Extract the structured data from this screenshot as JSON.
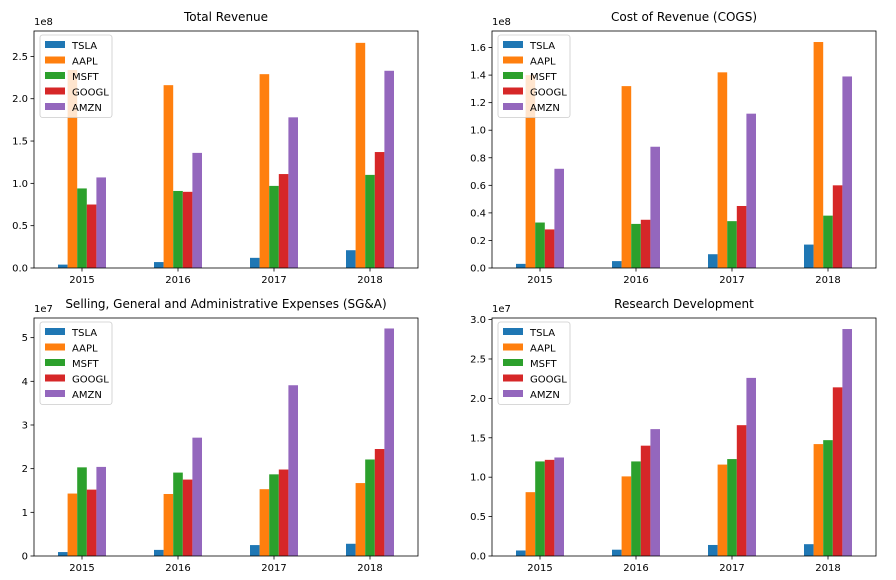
{
  "colors": {
    "TSLA": "#1f77b4",
    "AAPL": "#ff7f0e",
    "MSFT": "#2ca02c",
    "GOOGL": "#d62728",
    "AMZN": "#9467bd"
  },
  "chart_data": [
    {
      "type": "bar",
      "title": "Total Revenue",
      "offset_label": "1e8",
      "categories": [
        "2015",
        "2016",
        "2017",
        "2018"
      ],
      "ylim": [
        0,
        2.8
      ],
      "yticks": [
        0.0,
        0.5,
        1.0,
        1.5,
        2.0,
        2.5
      ],
      "ytick_labels": [
        "0.0",
        "0.5",
        "1.0",
        "1.5",
        "2.0",
        "2.5"
      ],
      "legend": [
        "TSLA",
        "AAPL",
        "MSFT",
        "GOOGL",
        "AMZN"
      ],
      "legend_loc": "upper-left",
      "series": [
        {
          "name": "TSLA",
          "values": [
            0.04,
            0.07,
            0.12,
            0.21
          ]
        },
        {
          "name": "AAPL",
          "values": [
            2.34,
            2.16,
            2.29,
            2.66
          ]
        },
        {
          "name": "MSFT",
          "values": [
            0.94,
            0.91,
            0.97,
            1.1
          ]
        },
        {
          "name": "GOOGL",
          "values": [
            0.75,
            0.9,
            1.11,
            1.37
          ]
        },
        {
          "name": "AMZN",
          "values": [
            1.07,
            1.36,
            1.78,
            2.33
          ]
        }
      ]
    },
    {
      "type": "bar",
      "title": "Cost of Revenue (COGS)",
      "offset_label": "1e8",
      "categories": [
        "2015",
        "2016",
        "2017",
        "2018"
      ],
      "ylim": [
        0,
        1.72
      ],
      "yticks": [
        0.0,
        0.2,
        0.4,
        0.6,
        0.8,
        1.0,
        1.2,
        1.4,
        1.6
      ],
      "ytick_labels": [
        "0.0",
        "0.2",
        "0.4",
        "0.6",
        "0.8",
        "1.0",
        "1.2",
        "1.4",
        "1.6"
      ],
      "legend": [
        "TSLA",
        "AAPL",
        "MSFT",
        "GOOGL",
        "AMZN"
      ],
      "legend_loc": "upper-left",
      "series": [
        {
          "name": "TSLA",
          "values": [
            0.03,
            0.05,
            0.1,
            0.17
          ]
        },
        {
          "name": "AAPL",
          "values": [
            1.4,
            1.32,
            1.42,
            1.64
          ]
        },
        {
          "name": "MSFT",
          "values": [
            0.33,
            0.32,
            0.34,
            0.38
          ]
        },
        {
          "name": "GOOGL",
          "values": [
            0.28,
            0.35,
            0.45,
            0.6
          ]
        },
        {
          "name": "AMZN",
          "values": [
            0.72,
            0.88,
            1.12,
            1.39
          ]
        }
      ]
    },
    {
      "type": "bar",
      "title": "Selling, General and Administrative Expenses (SG&A)",
      "offset_label": "1e7",
      "categories": [
        "2015",
        "2016",
        "2017",
        "2018"
      ],
      "ylim": [
        0,
        5.45
      ],
      "yticks": [
        0,
        1,
        2,
        3,
        4,
        5
      ],
      "ytick_labels": [
        "0",
        "1",
        "2",
        "3",
        "4",
        "5"
      ],
      "legend": [
        "TSLA",
        "AAPL",
        "MSFT",
        "GOOGL",
        "AMZN"
      ],
      "legend_loc": "upper-left",
      "series": [
        {
          "name": "TSLA",
          "values": [
            0.09,
            0.14,
            0.25,
            0.28
          ]
        },
        {
          "name": "AAPL",
          "values": [
            1.43,
            1.42,
            1.53,
            1.67
          ]
        },
        {
          "name": "MSFT",
          "values": [
            2.03,
            1.91,
            1.87,
            2.21
          ]
        },
        {
          "name": "GOOGL",
          "values": [
            1.52,
            1.75,
            1.98,
            2.45
          ]
        },
        {
          "name": "AMZN",
          "values": [
            2.04,
            2.71,
            3.91,
            5.21
          ]
        }
      ]
    },
    {
      "type": "bar",
      "title": "Research Development",
      "offset_label": "1e7",
      "categories": [
        "2015",
        "2016",
        "2017",
        "2018"
      ],
      "ylim": [
        0,
        3.02
      ],
      "yticks": [
        0.0,
        0.5,
        1.0,
        1.5,
        2.0,
        2.5,
        3.0
      ],
      "ytick_labels": [
        "0.0",
        "0.5",
        "1.0",
        "1.5",
        "2.0",
        "2.5",
        "3.0"
      ],
      "legend": [
        "TSLA",
        "AAPL",
        "MSFT",
        "GOOGL",
        "AMZN"
      ],
      "legend_loc": "upper-left",
      "series": [
        {
          "name": "TSLA",
          "values": [
            0.07,
            0.08,
            0.14,
            0.15
          ]
        },
        {
          "name": "AAPL",
          "values": [
            0.81,
            1.01,
            1.16,
            1.42
          ]
        },
        {
          "name": "MSFT",
          "values": [
            1.2,
            1.2,
            1.23,
            1.47
          ]
        },
        {
          "name": "GOOGL",
          "values": [
            1.22,
            1.4,
            1.66,
            2.14
          ]
        },
        {
          "name": "AMZN",
          "values": [
            1.25,
            1.61,
            2.26,
            2.88
          ]
        }
      ]
    }
  ]
}
